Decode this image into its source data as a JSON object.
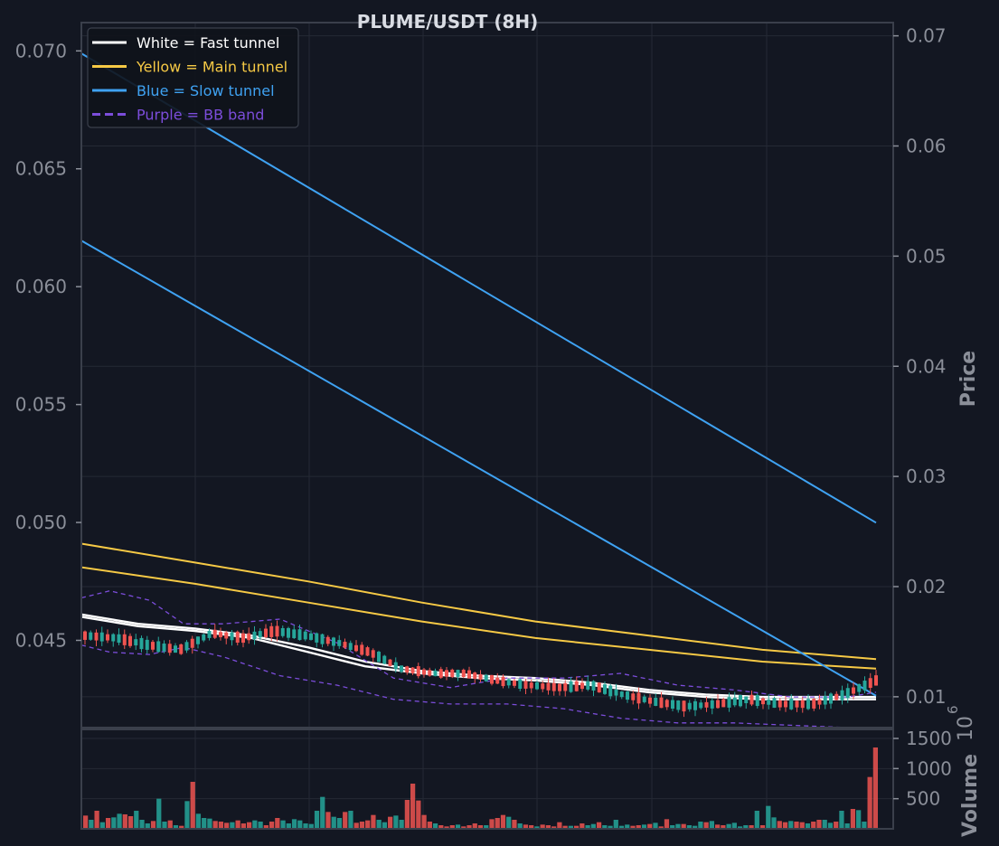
{
  "chart_data": {
    "type": "line",
    "title": "PLUME/USDT (8H)",
    "left_axis": {
      "ticks": [
        0.045,
        0.05,
        0.055,
        0.06,
        0.065,
        0.07
      ],
      "tick_labels": [
        "0.045",
        "0.050",
        "0.055",
        "0.060",
        "0.065",
        "0.070"
      ],
      "ylim": [
        0.0413,
        0.0712
      ]
    },
    "right_axis": {
      "label": "Price",
      "ticks": [
        0.01,
        0.02,
        0.03,
        0.04,
        0.05,
        0.06,
        0.07
      ],
      "tick_labels": [
        "0.01",
        "0.02",
        "0.03",
        "0.04",
        "0.05",
        "0.06",
        "0.07"
      ],
      "ylim": [
        0.0072,
        0.0712
      ]
    },
    "volume_axis": {
      "label": "Volume",
      "multiplier_label": "10",
      "multiplier_exp": "6",
      "ticks": [
        500,
        1000,
        1500
      ],
      "tick_labels": [
        "500",
        "1000",
        "1500"
      ],
      "ylim": [
        0,
        1500
      ]
    },
    "grid": true,
    "legend_position": "top-left",
    "legend": [
      {
        "label": "White = Fast tunnel",
        "color": "#ffffff",
        "dash": false
      },
      {
        "label": "Yellow = Main tunnel",
        "color": "#f6c945",
        "dash": false
      },
      {
        "label": "Blue = Slow tunnel",
        "color": "#3fa2f2",
        "dash": false
      },
      {
        "label": "Purple = BB band",
        "color": "#7c4ddb",
        "dash": true
      }
    ],
    "series": [
      {
        "name": "White = Fast tunnel",
        "color": "#ffffff",
        "axis": "left",
        "x": [
          0,
          10,
          20,
          30,
          40,
          50,
          60,
          70,
          80,
          90,
          100,
          110,
          120,
          130,
          140
        ],
        "y": [
          0.0461,
          0.0457,
          0.0455,
          0.0452,
          0.0447,
          0.0441,
          0.0437,
          0.0435,
          0.0434,
          0.0432,
          0.0429,
          0.0427,
          0.0426,
          0.0426,
          0.0426
        ]
      },
      {
        "name": "White = Fast tunnel",
        "color": "#ffffff",
        "axis": "left",
        "x": [
          0,
          10,
          20,
          30,
          40,
          50,
          60,
          70,
          80,
          90,
          100,
          110,
          120,
          130,
          140
        ],
        "y": [
          0.046,
          0.0456,
          0.0454,
          0.0451,
          0.0445,
          0.0439,
          0.0436,
          0.0434,
          0.0433,
          0.0431,
          0.0428,
          0.0426,
          0.0425,
          0.0425,
          0.0425
        ]
      },
      {
        "name": "Yellow = Main tunnel",
        "color": "#f6c945",
        "axis": "left",
        "x": [
          0,
          20,
          40,
          60,
          80,
          100,
          120,
          140
        ],
        "y": [
          0.0491,
          0.0483,
          0.0475,
          0.0466,
          0.0458,
          0.0452,
          0.0446,
          0.0442
        ]
      },
      {
        "name": "Yellow = Main tunnel",
        "color": "#f6c945",
        "axis": "left",
        "x": [
          0,
          20,
          40,
          60,
          80,
          100,
          120,
          140
        ],
        "y": [
          0.0481,
          0.0474,
          0.0466,
          0.0458,
          0.0451,
          0.0446,
          0.0441,
          0.0438
        ]
      },
      {
        "name": "Blue = Slow tunnel",
        "color": "#3fa2f2",
        "axis": "right",
        "x": [
          0,
          140
        ],
        "y": [
          0.0684,
          0.0258
        ]
      },
      {
        "name": "Blue = Slow tunnel",
        "color": "#3fa2f2",
        "axis": "right",
        "x": [
          0,
          140
        ],
        "y": [
          0.0514,
          0.0101
        ]
      },
      {
        "name": "Purple = BB band",
        "color": "#7c4ddb",
        "axis": "left",
        "dash": true,
        "x": [
          0,
          5,
          12,
          18,
          25,
          35,
          45,
          55,
          65,
          75,
          85,
          95,
          105,
          115,
          125,
          135,
          140
        ],
        "y": [
          0.0468,
          0.0471,
          0.0467,
          0.0457,
          0.0457,
          0.0459,
          0.0449,
          0.0434,
          0.043,
          0.0434,
          0.0434,
          0.0436,
          0.0431,
          0.0429,
          0.0426,
          0.0426,
          0.0428
        ]
      },
      {
        "name": "Purple = BB band",
        "color": "#7c4ddb",
        "axis": "left",
        "dash": true,
        "x": [
          0,
          5,
          12,
          18,
          25,
          35,
          45,
          55,
          65,
          75,
          85,
          95,
          105,
          115,
          125,
          135,
          140
        ],
        "y": [
          0.0448,
          0.0445,
          0.0444,
          0.0447,
          0.0443,
          0.0435,
          0.0431,
          0.0425,
          0.0423,
          0.0423,
          0.0421,
          0.0417,
          0.0415,
          0.0415,
          0.0414,
          0.0413,
          0.0413
        ]
      }
    ],
    "candles": {
      "x_start": 0,
      "x_end": 140,
      "close_anchors": [
        0.0452,
        0.0451,
        0.0448,
        0.0446,
        0.0453,
        0.0451,
        0.0454,
        0.0452,
        0.0449,
        0.0445,
        0.0438,
        0.0436,
        0.0436,
        0.0433,
        0.0431,
        0.043,
        0.0431,
        0.0427,
        0.0424,
        0.0422,
        0.0423,
        0.0425,
        0.0423,
        0.0423,
        0.0427,
        0.0433
      ],
      "up_color": "#26a69a",
      "down_color": "#ef5350"
    },
    "volume": {
      "values": [
        220,
        150,
        300,
        110,
        180,
        190,
        250,
        240,
        210,
        300,
        150,
        90,
        130,
        500,
        120,
        140,
        60,
        50,
        460,
        780,
        250,
        180,
        170,
        130,
        120,
        100,
        110,
        140,
        90,
        110,
        140,
        120,
        60,
        120,
        180,
        140,
        90,
        160,
        140,
        90,
        80,
        300,
        530,
        280,
        200,
        180,
        280,
        300,
        100,
        120,
        140,
        230,
        150,
        110,
        200,
        220,
        150,
        480,
        750,
        470,
        230,
        120,
        90,
        60,
        40,
        60,
        70,
        40,
        60,
        90,
        60,
        60,
        160,
        180,
        230,
        200,
        150,
        90,
        70,
        60,
        40,
        70,
        60,
        40,
        110,
        50,
        50,
        50,
        90,
        60,
        80,
        110,
        60,
        50,
        150,
        50,
        70,
        50,
        60,
        70,
        80,
        100,
        40,
        160,
        60,
        80,
        80,
        60,
        50,
        120,
        110,
        130,
        70,
        60,
        80,
        100,
        40,
        60,
        60,
        300,
        60,
        380,
        190,
        130,
        110,
        130,
        120,
        110,
        90,
        120,
        150,
        150,
        100,
        120,
        300,
        90,
        330,
        310,
        120,
        860,
        1350
      ],
      "colors_up_when_odd": true
    }
  }
}
